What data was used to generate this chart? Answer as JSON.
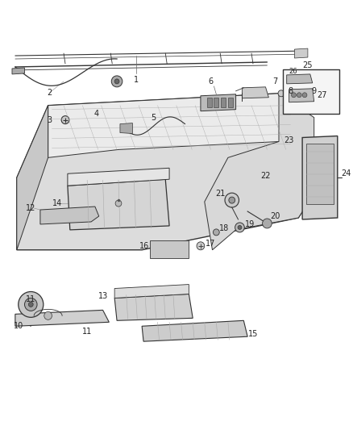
{
  "bg_color": "#ffffff",
  "fig_width": 4.38,
  "fig_height": 5.33,
  "dpi": 100,
  "line_color": "#333333",
  "label_color": "#222222",
  "part_fill": "#e0e0e0",
  "part_edge": "#333333"
}
